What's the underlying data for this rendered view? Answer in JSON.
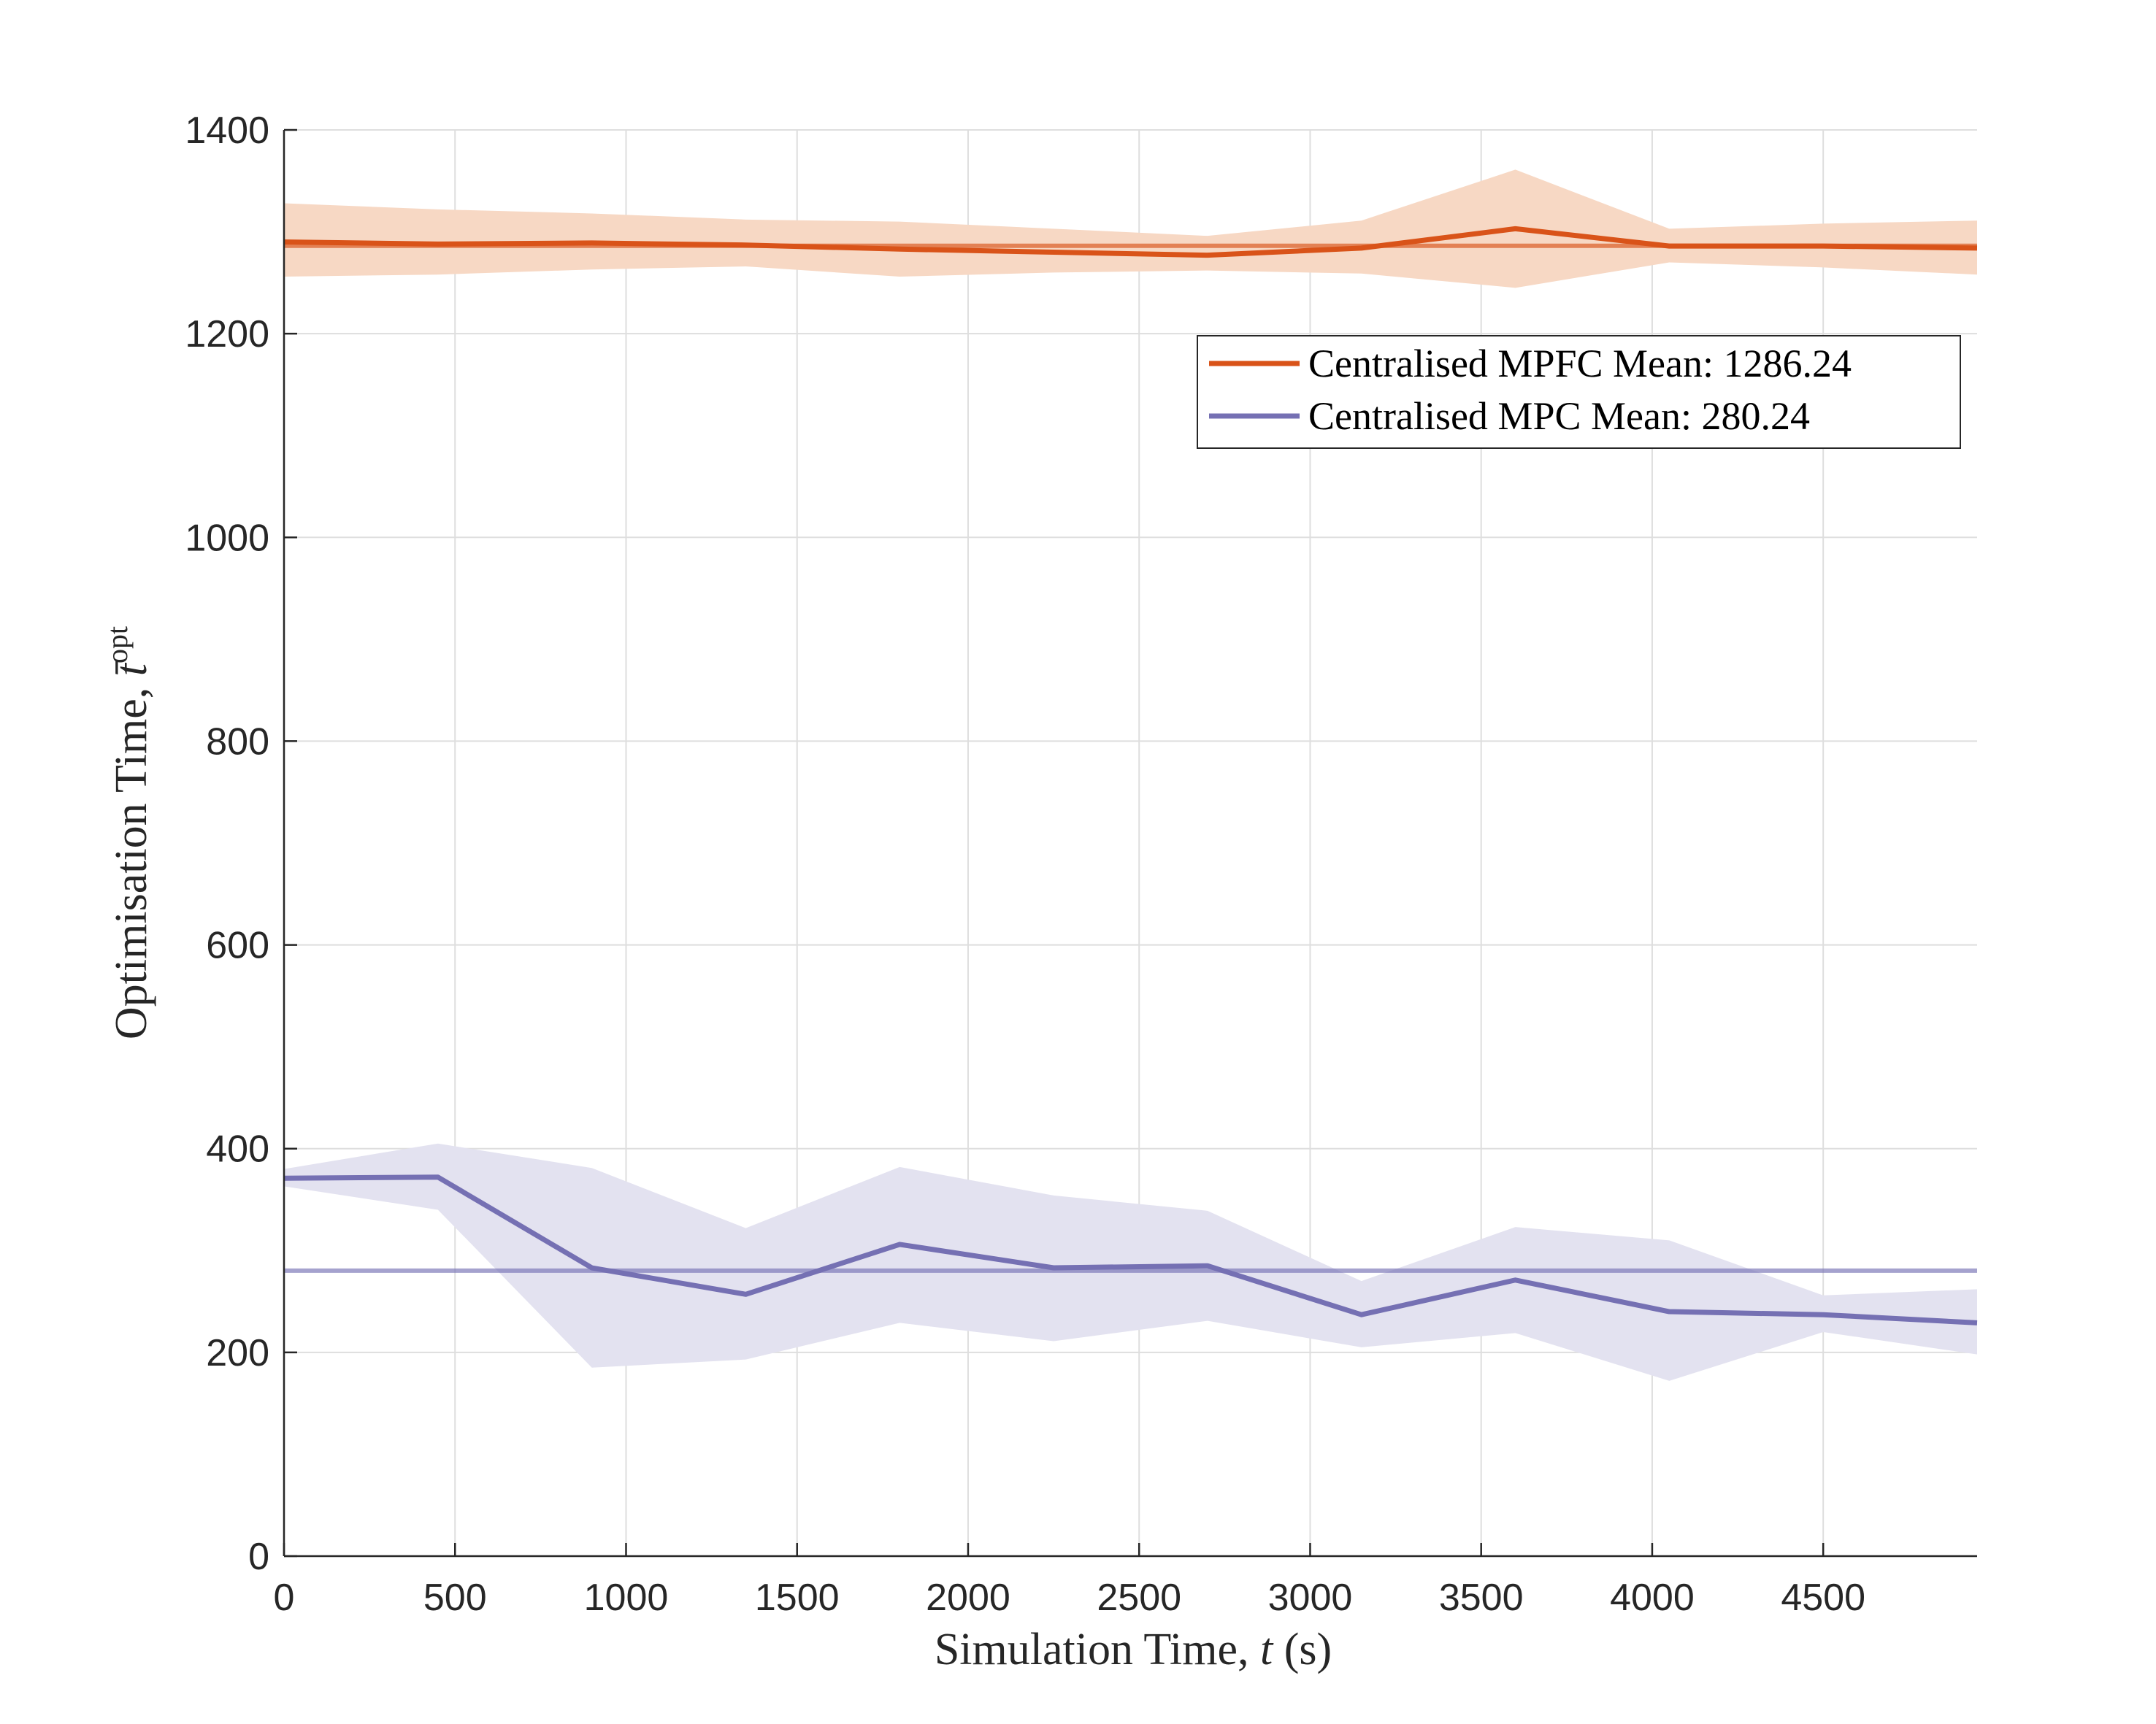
{
  "chart_data": {
    "type": "line",
    "xlabel": "Simulation Time, ",
    "xlabel_var": "t",
    "xlabel_unit": " (s)",
    "ylabel": "Optimisation Time, ",
    "ylabel_var": "t̄",
    "ylabel_sup": "opt",
    "xlim": [
      0,
      4950
    ],
    "ylim": [
      0,
      1400
    ],
    "xticks": [
      0,
      500,
      1000,
      1500,
      2000,
      2500,
      3000,
      3500,
      4000,
      4500
    ],
    "yticks": [
      0,
      200,
      400,
      600,
      800,
      1000,
      1200,
      1400
    ],
    "grid": true,
    "legend_position": "upper-right",
    "x": [
      0,
      450,
      900,
      1350,
      1800,
      2250,
      2700,
      3150,
      3600,
      4050,
      4500,
      4950
    ],
    "series": [
      {
        "name": "Centralised MPFC Mean: 1286.24",
        "color": "#D95319",
        "band_color": "#F7D8C4",
        "mean_line": 1286.24,
        "values": [
          1290,
          1288,
          1289,
          1287,
          1283,
          1280,
          1277,
          1284,
          1303,
          1286,
          1286,
          1284
        ],
        "upper": [
          1328,
          1322,
          1318,
          1312,
          1310,
          1303,
          1296,
          1311,
          1361,
          1303,
          1308,
          1311
        ],
        "lower": [
          1256,
          1258,
          1263,
          1266,
          1256,
          1260,
          1262,
          1259,
          1245,
          1270,
          1265,
          1258
        ]
      },
      {
        "name": "Centralised MPC Mean: 280.24",
        "color": "#7570B3",
        "band_color": "#E3E2F0",
        "mean_line": 280.24,
        "values": [
          371,
          372,
          283,
          257,
          306,
          283,
          285,
          237,
          271,
          240,
          237,
          229
        ],
        "upper": [
          380,
          405,
          381,
          322,
          382,
          354,
          339,
          270,
          323,
          310,
          256,
          262
        ],
        "lower": [
          363,
          340,
          185,
          193,
          229,
          211,
          231,
          205,
          219,
          172,
          220,
          198
        ]
      }
    ]
  }
}
